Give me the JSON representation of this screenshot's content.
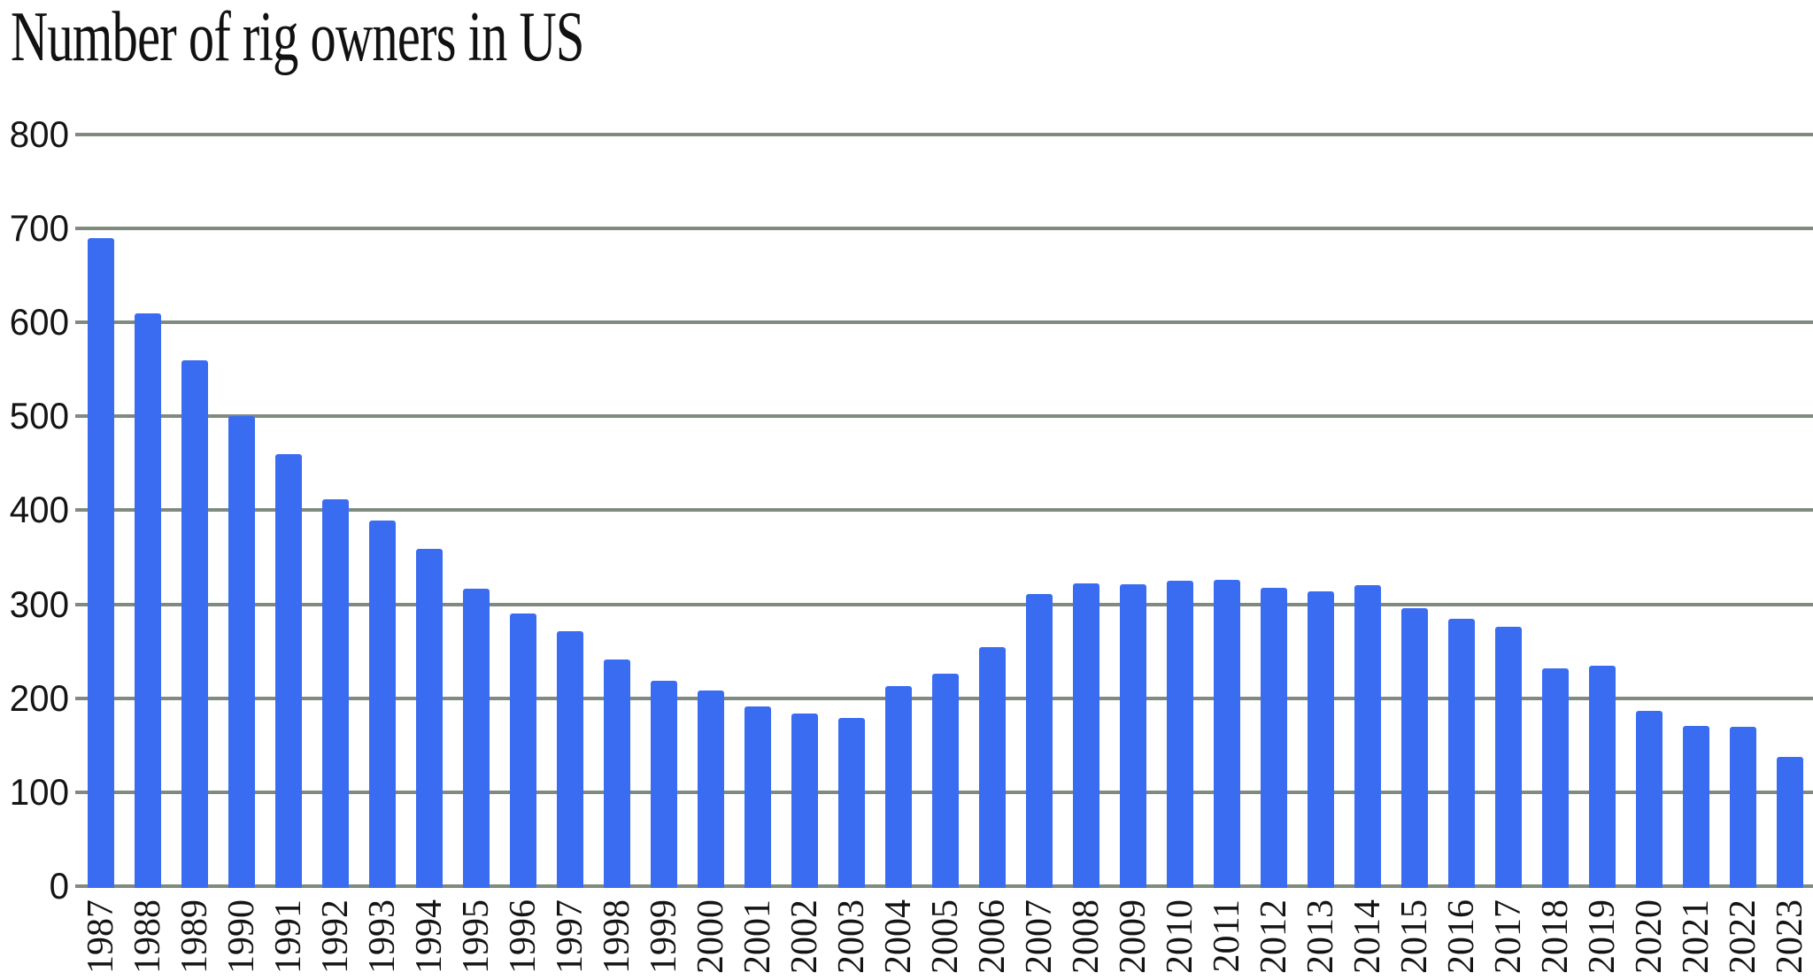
{
  "chart_data": {
    "type": "bar",
    "title": "Number of rig owners in US",
    "categories": [
      "1987",
      "1988",
      "1989",
      "1990",
      "1991",
      "1992",
      "1993",
      "1994",
      "1995",
      "1996",
      "1997",
      "1998",
      "1999",
      "2000",
      "2001",
      "2002",
      "2003",
      "2004",
      "2005",
      "2006",
      "2007",
      "2008",
      "2009",
      "2010",
      "2011",
      "2012",
      "2013",
      "2014",
      "2015",
      "2016",
      "2017",
      "2018",
      "2019",
      "2020",
      "2021",
      "2022",
      "2023"
    ],
    "values": [
      690,
      610,
      560,
      500,
      460,
      412,
      389,
      359,
      317,
      290,
      271,
      241,
      219,
      208,
      191,
      184,
      179,
      213,
      226,
      254,
      311,
      322,
      321,
      325,
      326,
      318,
      314,
      320,
      296,
      285,
      276,
      232,
      235,
      187,
      171,
      170,
      138
    ],
    "xlabel": "",
    "ylabel": "",
    "yticks": [
      0,
      100,
      200,
      300,
      400,
      500,
      600,
      700,
      800
    ],
    "ylim": [
      0,
      800
    ],
    "grid": true,
    "legend": false,
    "colors": {
      "bar": "#3a6cf2",
      "gridline": "#7f8b7f",
      "text": "#141414",
      "background": "#ffffff"
    }
  }
}
